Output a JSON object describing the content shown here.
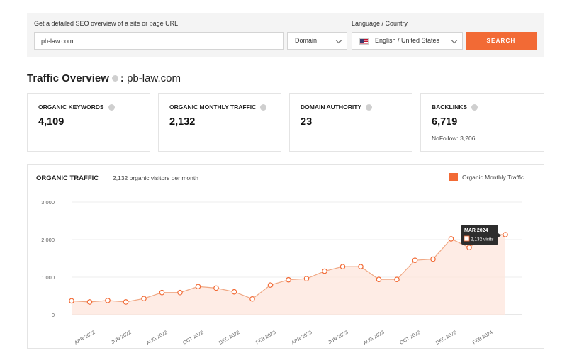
{
  "search": {
    "label": "Get a detailed SEO overview of a site or page URL",
    "url_value": "pb-law.com",
    "domain_select": "Domain",
    "language_label": "Language / Country",
    "language_value": "English / United States",
    "search_button": "SEARCH",
    "flag_icon": "us-flag-icon"
  },
  "overview": {
    "title": "Traffic Overview",
    "separator": ":",
    "domain": "pb-law.com"
  },
  "metrics": [
    {
      "label": "ORGANIC KEYWORDS",
      "value": "4,109"
    },
    {
      "label": "ORGANIC MONTHLY TRAFFIC",
      "value": "2,132"
    },
    {
      "label": "DOMAIN AUTHORITY",
      "value": "23"
    },
    {
      "label": "BACKLINKS",
      "value": "6,719",
      "sub": "NoFollow: 3,206"
    }
  ],
  "traffic": {
    "title": "ORGANIC TRAFFIC",
    "subtitle": "2,132 organic visitors per month",
    "legend": "Organic Monthly Traffic"
  },
  "colors": {
    "accent": "#f26a35",
    "line": "#f0a884",
    "fill": "#fde6dc"
  },
  "chart_data": {
    "type": "area",
    "x": [
      "MAR 2022",
      "APR 2022",
      "MAY 2022",
      "JUN 2022",
      "JUL 2022",
      "AUG 2022",
      "SEP 2022",
      "OCT 2022",
      "NOV 2022",
      "DEC 2022",
      "JAN 2023",
      "FEB 2023",
      "MAR 2023",
      "APR 2023",
      "MAY 2023",
      "JUN 2023",
      "JUL 2023",
      "AUG 2023",
      "SEP 2023",
      "OCT 2023",
      "NOV 2023",
      "DEC 2023",
      "JAN 2024",
      "FEB 2024",
      "MAR 2024"
    ],
    "tick_labels": [
      "",
      "APR 2022",
      "",
      "JUN 2022",
      "",
      "AUG 2022",
      "",
      "OCT 2022",
      "",
      "DEC 2022",
      "",
      "FEB 2023",
      "",
      "APR 2023",
      "",
      "JUN 2023",
      "",
      "AUG 2023",
      "",
      "OCT 2023",
      "",
      "DEC 2023",
      "",
      "FEB 2024",
      ""
    ],
    "series": [
      {
        "name": "Organic Monthly Traffic",
        "values": [
          370,
          340,
          380,
          340,
          430,
          590,
          590,
          750,
          710,
          610,
          420,
          790,
          930,
          960,
          1160,
          1280,
          1280,
          940,
          940,
          1450,
          1480,
          2020,
          1790,
          2130,
          2132
        ]
      }
    ],
    "y_ticks": [
      "0",
      "1,000",
      "2,000",
      "3,000"
    ],
    "ylim": [
      0,
      3000
    ],
    "grid": true,
    "tooltip": {
      "title": "MAR 2024",
      "text": "2,132 visits"
    }
  }
}
